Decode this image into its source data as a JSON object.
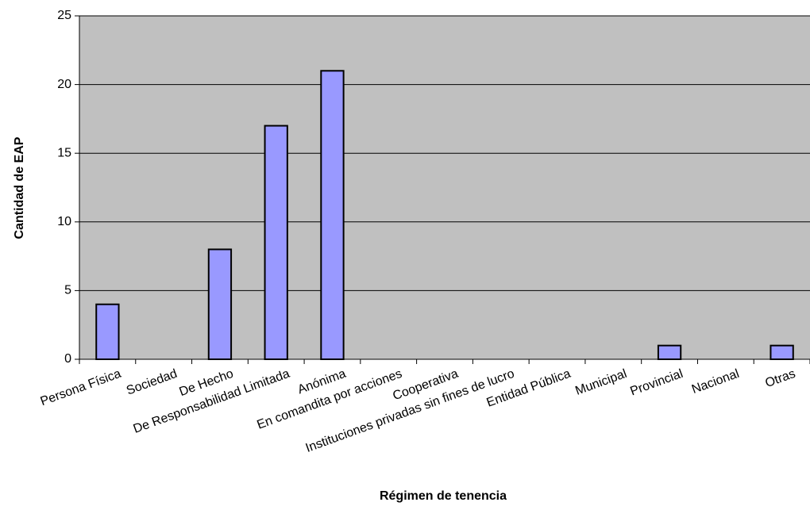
{
  "chart_data": {
    "type": "bar",
    "title": "",
    "xlabel": "Régimen de tenencia",
    "ylabel": "Cantidad de EAP",
    "ylim": [
      0,
      25
    ],
    "yticks": [
      0,
      5,
      10,
      15,
      20,
      25
    ],
    "grid": true,
    "legend": "none",
    "categories": [
      "Persona Física",
      "Sociedad",
      "De Hecho",
      "De Responsabilidad Limitada",
      "Anónima",
      "En comandita por acciones",
      "Cooperativa",
      "Instituciones privadas sin fines de lucro",
      "Entidad Pública",
      "Municipal",
      "Provincial",
      "Nacional",
      "Otras"
    ],
    "values": [
      4,
      0,
      8,
      17,
      21,
      0,
      0,
      0,
      0,
      0,
      1,
      0,
      1
    ],
    "colors": {
      "plot_background": "#c0c0c0",
      "bar_fill": "#9999ff",
      "bar_stroke": "#000000",
      "gridline": "#000000"
    }
  }
}
